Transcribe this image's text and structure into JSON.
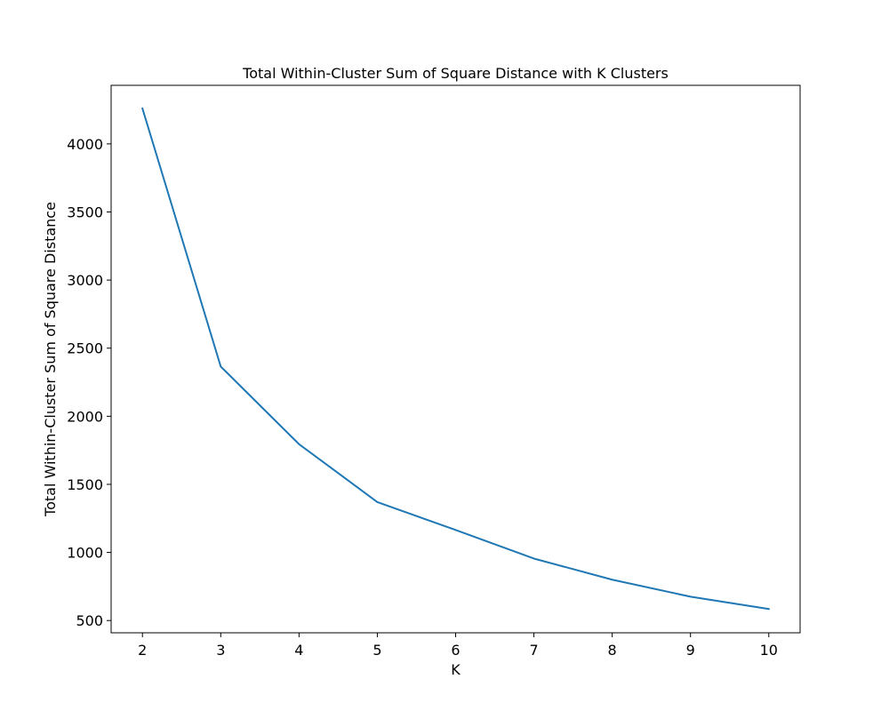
{
  "chart_data": {
    "type": "line",
    "title": "Total Within-Cluster Sum of Square Distance with K Clusters",
    "xlabel": "K",
    "ylabel": "Total Within-Cluster Sum of Square Distance",
    "x": [
      2,
      3,
      4,
      5,
      6,
      7,
      8,
      9,
      10
    ],
    "series": [
      {
        "values": [
          4260,
          2365,
          1795,
          1370,
          1165,
          955,
          800,
          675,
          585
        ],
        "color": "#1f77b4"
      }
    ],
    "xlim": [
      1.6,
      10.4
    ],
    "ylim": [
      410,
      4430
    ],
    "x_ticks": [
      2,
      3,
      4,
      5,
      6,
      7,
      8,
      9,
      10
    ],
    "y_ticks": [
      500,
      1000,
      1500,
      2000,
      2500,
      3000,
      3500,
      4000
    ],
    "grid": false,
    "legend": false
  }
}
